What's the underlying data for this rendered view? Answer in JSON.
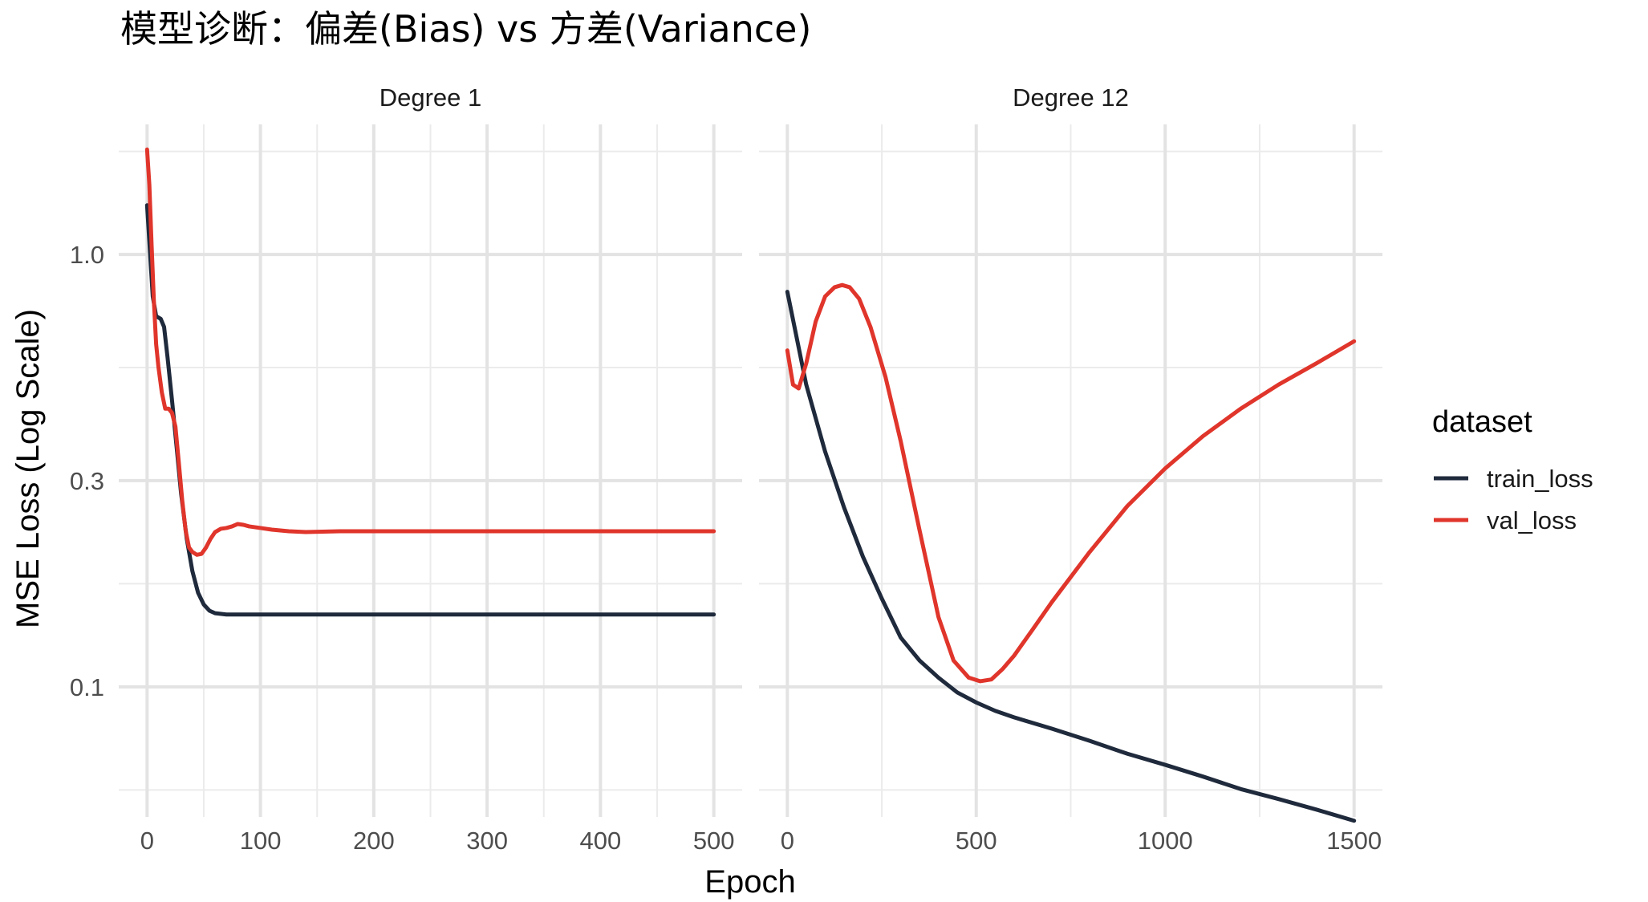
{
  "chart_data": {
    "type": "line",
    "title": "模型诊断：偏差(Bias) vs 方差(Variance)",
    "xlabel": "Epoch",
    "ylabel": "MSE Loss (Log Scale)",
    "y_scale": "log10",
    "ylim": [
      0.05,
      2.0
    ],
    "y_ticks": [
      0.1,
      0.3,
      1.0
    ],
    "y_tick_labels": [
      "0.1",
      "0.3",
      "1.0"
    ],
    "grid": true,
    "legend": {
      "title": "dataset",
      "position": "right",
      "entries": [
        {
          "label": "train_loss",
          "color": "#1f2a3c"
        },
        {
          "label": "val_loss",
          "color": "#e0352b"
        }
      ]
    },
    "panels": [
      {
        "label": "Degree 1",
        "xlim": [
          -25,
          525
        ],
        "x_ticks": [
          0,
          100,
          200,
          300,
          400,
          500
        ],
        "x_tick_labels": [
          "0",
          "100",
          "200",
          "300",
          "400",
          "500"
        ],
        "series": [
          {
            "name": "train_loss",
            "color": "#1f2a3c",
            "x": [
              0,
              5,
              8,
              12,
              15,
              18,
              22,
              26,
              30,
              35,
              40,
              45,
              50,
              55,
              60,
              70,
              80,
              100,
              150,
              200,
              300,
              400,
              500
            ],
            "y": [
              1.3,
              0.8,
              0.72,
              0.71,
              0.68,
              0.58,
              0.46,
              0.36,
              0.28,
              0.22,
              0.185,
              0.165,
              0.155,
              0.15,
              0.148,
              0.147,
              0.147,
              0.147,
              0.147,
              0.147,
              0.147,
              0.147,
              0.147
            ]
          },
          {
            "name": "val_loss",
            "color": "#e0352b",
            "x": [
              0,
              2,
              4,
              6,
              8,
              10,
              13,
              16,
              19,
              22,
              25,
              28,
              31,
              34,
              37,
              40,
              44,
              48,
              52,
              56,
              60,
              65,
              70,
              75,
              80,
              85,
              90,
              95,
              100,
              110,
              125,
              140,
              170,
              200,
              300,
              400,
              500
            ],
            "y": [
              1.75,
              1.45,
              1.05,
              0.78,
              0.62,
              0.55,
              0.48,
              0.44,
              0.44,
              0.43,
              0.4,
              0.33,
              0.27,
              0.23,
              0.21,
              0.205,
              0.202,
              0.203,
              0.21,
              0.22,
              0.228,
              0.232,
              0.233,
              0.235,
              0.238,
              0.237,
              0.235,
              0.234,
              0.233,
              0.231,
              0.229,
              0.228,
              0.229,
              0.229,
              0.229,
              0.229,
              0.229
            ]
          }
        ]
      },
      {
        "label": "Degree 12",
        "xlim": [
          -75,
          1575
        ],
        "x_ticks": [
          0,
          500,
          1000,
          1500
        ],
        "x_tick_labels": [
          "0",
          "500",
          "1000",
          "1500"
        ],
        "series": [
          {
            "name": "train_loss",
            "color": "#1f2a3c",
            "x": [
              0,
              50,
              100,
              150,
              200,
              250,
              300,
              350,
              400,
              450,
              500,
              550,
              600,
              700,
              800,
              900,
              1000,
              1100,
              1200,
              1300,
              1400,
              1500
            ],
            "y": [
              0.82,
              0.5,
              0.35,
              0.26,
              0.2,
              0.16,
              0.13,
              0.115,
              0.105,
              0.097,
              0.092,
              0.088,
              0.085,
              0.08,
              0.075,
              0.07,
              0.066,
              0.062,
              0.058,
              0.055,
              0.052,
              0.049
            ]
          },
          {
            "name": "val_loss",
            "color": "#e0352b",
            "x": [
              0,
              15,
              30,
              50,
              75,
              100,
              125,
              145,
              165,
              190,
              220,
              260,
              300,
              350,
              400,
              440,
              480,
              510,
              540,
              570,
              600,
              650,
              700,
              800,
              900,
              1000,
              1100,
              1200,
              1300,
              1400,
              1500
            ],
            "y": [
              0.6,
              0.5,
              0.49,
              0.56,
              0.7,
              0.8,
              0.84,
              0.85,
              0.84,
              0.79,
              0.68,
              0.52,
              0.37,
              0.23,
              0.145,
              0.115,
              0.105,
              0.103,
              0.104,
              0.11,
              0.118,
              0.136,
              0.157,
              0.205,
              0.262,
              0.32,
              0.38,
              0.44,
              0.5,
              0.56,
              0.63
            ]
          }
        ]
      }
    ]
  }
}
